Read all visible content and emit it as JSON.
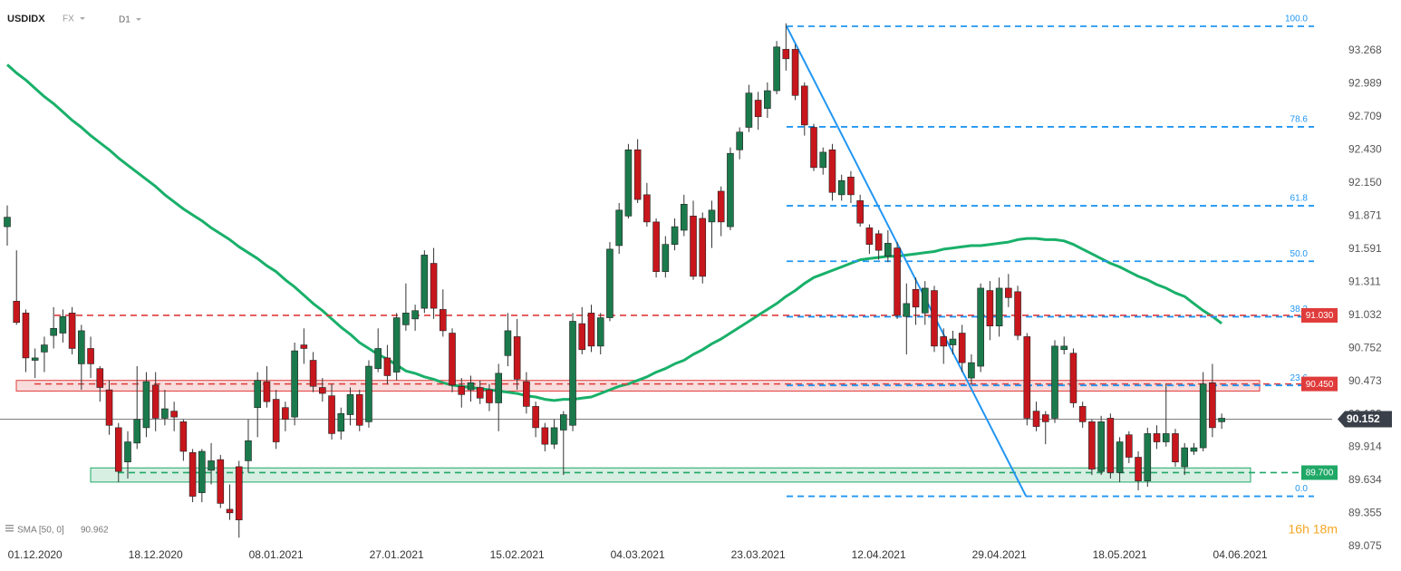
{
  "header": {
    "symbol": "USDIDX",
    "market": "FX",
    "interval": "D1"
  },
  "timer": "16h 18m",
  "chart_data": {
    "type": "candlestick",
    "up_color": "#1b7a4c",
    "down_color": "#c8161d",
    "grid": false,
    "ylim": [
      89.075,
      93.697
    ],
    "yticks": [
      {
        "value": 93.268,
        "label": "93.268"
      },
      {
        "value": 92.989,
        "label": "92.989"
      },
      {
        "value": 92.709,
        "label": "92.709"
      },
      {
        "value": 92.43,
        "label": "92.430"
      },
      {
        "value": 92.15,
        "label": "92.150"
      },
      {
        "value": 91.871,
        "label": "91.871"
      },
      {
        "value": 91.591,
        "label": "91.591"
      },
      {
        "value": 91.311,
        "label": "91.311"
      },
      {
        "value": 91.032,
        "label": "91.032"
      },
      {
        "value": 90.752,
        "label": "90.752"
      },
      {
        "value": 90.473,
        "label": "90.473"
      },
      {
        "value": 90.193,
        "label": "90.193"
      },
      {
        "value": 89.914,
        "label": "89.914"
      },
      {
        "value": 89.634,
        "label": "89.634"
      },
      {
        "value": 89.355,
        "label": "89.355"
      },
      {
        "value": 89.075,
        "label": "89.075"
      }
    ],
    "categories": [
      null,
      null,
      null,
      "01.12.2020",
      null,
      null,
      null,
      null,
      null,
      null,
      null,
      null,
      null,
      null,
      null,
      null,
      "18.12.2020",
      null,
      null,
      null,
      null,
      null,
      null,
      null,
      null,
      null,
      null,
      null,
      null,
      "08.01.2021",
      null,
      null,
      null,
      null,
      null,
      null,
      null,
      null,
      null,
      null,
      null,
      null,
      "27.01.2021",
      null,
      null,
      null,
      null,
      null,
      null,
      null,
      null,
      null,
      null,
      null,
      null,
      "15.02.2021",
      null,
      null,
      null,
      null,
      null,
      null,
      null,
      null,
      null,
      null,
      null,
      null,
      "04.03.2021",
      null,
      null,
      null,
      null,
      null,
      null,
      null,
      null,
      null,
      null,
      null,
      null,
      "23.03.2021",
      null,
      null,
      null,
      null,
      null,
      null,
      null,
      null,
      null,
      null,
      null,
      null,
      "12.04.2021",
      null,
      null,
      null,
      null,
      null,
      null,
      null,
      null,
      null,
      null,
      null,
      null,
      "29.04.2021",
      null,
      null,
      null,
      null,
      null,
      null,
      null,
      null,
      null,
      null,
      null,
      null,
      "18.05.2021",
      null,
      null,
      null,
      null,
      null,
      null,
      null,
      null,
      null,
      null,
      null,
      null,
      "04.06.2021"
    ],
    "candles": [
      [
        91.78,
        91.96,
        91.62,
        91.86
      ],
      [
        91.15,
        91.58,
        90.95,
        90.97
      ],
      [
        91.05,
        91.08,
        90.55,
        90.67
      ],
      [
        90.65,
        90.75,
        90.5,
        90.67
      ],
      [
        90.72,
        90.85,
        90.55,
        90.78
      ],
      [
        90.86,
        91.1,
        90.75,
        90.92
      ],
      [
        90.88,
        91.08,
        90.8,
        91.02
      ],
      [
        91.05,
        91.1,
        90.7,
        90.75
      ],
      [
        90.62,
        90.95,
        90.4,
        90.9
      ],
      [
        90.75,
        90.85,
        90.5,
        90.62
      ],
      [
        90.58,
        90.6,
        90.3,
        90.42
      ],
      [
        90.4,
        90.48,
        90.02,
        90.1
      ],
      [
        90.08,
        90.12,
        89.62,
        89.71
      ],
      [
        89.79,
        90.05,
        89.65,
        89.96
      ],
      [
        89.95,
        90.6,
        89.9,
        90.15
      ],
      [
        90.08,
        90.55,
        90.0,
        90.47
      ],
      [
        90.44,
        90.55,
        90.05,
        90.16
      ],
      [
        90.16,
        90.4,
        90.1,
        90.24
      ],
      [
        90.22,
        90.3,
        90.05,
        90.17
      ],
      [
        90.13,
        90.15,
        89.8,
        89.88
      ],
      [
        89.87,
        89.9,
        89.45,
        89.5
      ],
      [
        89.53,
        89.9,
        89.45,
        89.88
      ],
      [
        89.72,
        89.95,
        89.6,
        89.8
      ],
      [
        89.81,
        89.85,
        89.4,
        89.44
      ],
      [
        89.39,
        89.6,
        89.3,
        89.36
      ],
      [
        89.75,
        89.8,
        89.15,
        89.3
      ],
      [
        89.8,
        90.15,
        89.7,
        89.97
      ],
      [
        90.25,
        90.55,
        90.0,
        90.48
      ],
      [
        90.47,
        90.6,
        90.25,
        90.3
      ],
      [
        90.32,
        90.4,
        89.9,
        89.96
      ],
      [
        90.25,
        90.3,
        90.05,
        90.15
      ],
      [
        90.17,
        90.8,
        90.1,
        90.73
      ],
      [
        90.78,
        90.92,
        90.62,
        90.75
      ],
      [
        90.65,
        90.72,
        90.38,
        90.43
      ],
      [
        90.42,
        90.5,
        90.3,
        90.37
      ],
      [
        90.35,
        90.45,
        89.98,
        90.03
      ],
      [
        90.05,
        90.25,
        89.98,
        90.2
      ],
      [
        90.19,
        90.42,
        90.1,
        90.36
      ],
      [
        90.36,
        90.4,
        90.05,
        90.1
      ],
      [
        90.13,
        90.65,
        90.08,
        90.6
      ],
      [
        90.58,
        90.92,
        90.55,
        90.75
      ],
      [
        90.67,
        90.78,
        90.45,
        90.52
      ],
      [
        90.55,
        91.05,
        90.48,
        91.01
      ],
      [
        90.95,
        91.3,
        90.9,
        91.05
      ],
      [
        91.0,
        91.12,
        90.9,
        91.07
      ],
      [
        91.09,
        91.58,
        91.05,
        91.54
      ],
      [
        91.47,
        91.6,
        91.0,
        91.09
      ],
      [
        91.08,
        91.25,
        90.85,
        90.9
      ],
      [
        90.88,
        90.92,
        90.38,
        90.44
      ],
      [
        90.43,
        90.5,
        90.25,
        90.36
      ],
      [
        90.4,
        90.52,
        90.3,
        90.46
      ],
      [
        90.42,
        90.48,
        90.28,
        90.33
      ],
      [
        90.4,
        90.45,
        90.22,
        90.29
      ],
      [
        90.29,
        90.62,
        90.05,
        90.54
      ],
      [
        90.69,
        91.05,
        90.6,
        90.9
      ],
      [
        90.85,
        91.0,
        90.4,
        90.49
      ],
      [
        90.47,
        90.55,
        90.2,
        90.26
      ],
      [
        90.26,
        90.3,
        90.0,
        90.08
      ],
      [
        90.08,
        90.12,
        89.88,
        89.94
      ],
      [
        89.94,
        90.15,
        89.9,
        90.08
      ],
      [
        90.06,
        90.22,
        89.68,
        90.19
      ],
      [
        90.1,
        91.05,
        90.05,
        90.98
      ],
      [
        90.96,
        91.1,
        90.7,
        90.74
      ],
      [
        91.05,
        91.12,
        90.72,
        90.77
      ],
      [
        90.77,
        91.05,
        90.7,
        91.01
      ],
      [
        91.01,
        91.65,
        90.98,
        91.59
      ],
      [
        91.62,
        91.98,
        91.55,
        91.92
      ],
      [
        91.87,
        92.48,
        91.85,
        92.43
      ],
      [
        92.43,
        92.52,
        91.98,
        92.01
      ],
      [
        92.05,
        92.15,
        91.78,
        91.82
      ],
      [
        91.82,
        91.85,
        91.35,
        91.4
      ],
      [
        91.4,
        91.7,
        91.35,
        91.63
      ],
      [
        91.63,
        91.85,
        91.58,
        91.78
      ],
      [
        91.75,
        92.05,
        91.7,
        91.97
      ],
      [
        91.87,
        92.0,
        91.33,
        91.36
      ],
      [
        91.85,
        91.9,
        91.3,
        91.36
      ],
      [
        91.82,
        92.0,
        91.6,
        91.92
      ],
      [
        92.08,
        92.12,
        91.7,
        91.82
      ],
      [
        91.78,
        92.45,
        91.75,
        92.4
      ],
      [
        92.43,
        92.62,
        92.35,
        92.58
      ],
      [
        92.62,
        92.98,
        92.58,
        92.91
      ],
      [
        92.85,
        92.92,
        92.6,
        92.71
      ],
      [
        92.78,
        93.0,
        92.7,
        92.93
      ],
      [
        92.93,
        93.35,
        92.9,
        93.3
      ],
      [
        93.28,
        93.5,
        93.1,
        93.2
      ],
      [
        93.28,
        93.32,
        92.85,
        92.89
      ],
      [
        92.97,
        93.0,
        92.55,
        92.64
      ],
      [
        92.62,
        92.65,
        92.25,
        92.28
      ],
      [
        92.28,
        92.45,
        92.22,
        92.41
      ],
      [
        92.43,
        92.48,
        92.0,
        92.07
      ],
      [
        92.05,
        92.22,
        92.0,
        92.17
      ],
      [
        92.2,
        92.25,
        91.98,
        92.05
      ],
      [
        92.0,
        92.05,
        91.78,
        91.81
      ],
      [
        91.77,
        91.8,
        91.55,
        91.63
      ],
      [
        91.72,
        91.75,
        91.5,
        91.58
      ],
      [
        91.53,
        91.75,
        91.48,
        91.64
      ],
      [
        91.6,
        91.65,
        91.0,
        91.03
      ],
      [
        91.02,
        91.3,
        90.7,
        91.13
      ],
      [
        91.25,
        91.35,
        90.95,
        91.1
      ],
      [
        91.05,
        91.32,
        90.95,
        91.26
      ],
      [
        91.24,
        91.28,
        90.72,
        90.77
      ],
      [
        90.85,
        90.92,
        90.62,
        90.77
      ],
      [
        90.78,
        90.9,
        90.7,
        90.83
      ],
      [
        90.88,
        90.95,
        90.55,
        90.63
      ],
      [
        90.5,
        90.7,
        90.45,
        90.63
      ],
      [
        90.6,
        91.3,
        90.55,
        91.26
      ],
      [
        91.24,
        91.32,
        90.82,
        90.94
      ],
      [
        90.94,
        91.35,
        90.85,
        91.26
      ],
      [
        91.26,
        91.38,
        91.1,
        91.18
      ],
      [
        91.23,
        91.28,
        90.82,
        90.86
      ],
      [
        90.85,
        90.88,
        90.1,
        90.16
      ],
      [
        90.22,
        90.3,
        90.05,
        90.09
      ],
      [
        90.19,
        90.22,
        89.94,
        90.13
      ],
      [
        90.16,
        90.82,
        90.12,
        90.77
      ],
      [
        90.74,
        90.85,
        90.7,
        90.77
      ],
      [
        90.71,
        90.75,
        90.25,
        90.29
      ],
      [
        90.26,
        90.3,
        90.08,
        90.13
      ],
      [
        90.13,
        90.15,
        89.68,
        89.73
      ],
      [
        89.71,
        90.18,
        89.68,
        90.13
      ],
      [
        90.16,
        90.2,
        89.65,
        89.7
      ],
      [
        89.7,
        90.0,
        89.62,
        89.96
      ],
      [
        90.02,
        90.05,
        89.78,
        89.83
      ],
      [
        89.83,
        89.88,
        89.55,
        89.63
      ],
      [
        89.63,
        90.08,
        89.58,
        90.03
      ],
      [
        90.03,
        90.1,
        89.9,
        89.96
      ],
      [
        89.96,
        90.45,
        89.92,
        90.03
      ],
      [
        90.03,
        90.07,
        89.75,
        89.79
      ],
      [
        89.75,
        89.95,
        89.68,
        89.91
      ],
      [
        89.88,
        89.95,
        89.85,
        89.91
      ],
      [
        89.91,
        90.55,
        89.88,
        90.45
      ],
      [
        90.46,
        90.62,
        90.0,
        90.08
      ],
      [
        90.13,
        90.2,
        90.07,
        90.16
      ],
      null,
      null
    ],
    "sma": {
      "name": "SMA [50, 0]",
      "color": "#19b06a",
      "values": [
        93.15,
        93.08,
        93.02,
        92.95,
        92.88,
        92.82,
        92.75,
        92.68,
        92.62,
        92.55,
        92.49,
        92.43,
        92.36,
        92.3,
        92.24,
        92.18,
        92.12,
        92.05,
        91.99,
        91.93,
        91.88,
        91.83,
        91.77,
        91.72,
        91.67,
        91.61,
        91.56,
        91.51,
        91.45,
        91.4,
        91.33,
        91.27,
        91.2,
        91.13,
        91.07,
        91.0,
        90.93,
        90.87,
        90.8,
        90.75,
        90.7,
        90.66,
        90.61,
        90.56,
        90.54,
        90.51,
        90.49,
        90.46,
        90.44,
        90.43,
        90.42,
        90.41,
        90.4,
        90.39,
        90.38,
        90.37,
        90.35,
        90.34,
        90.32,
        90.31,
        90.32,
        90.32,
        90.33,
        90.34,
        90.37,
        90.4,
        90.43,
        90.45,
        90.48,
        90.51,
        90.55,
        90.58,
        90.62,
        90.65,
        90.7,
        90.74,
        90.79,
        90.83,
        90.88,
        90.93,
        90.98,
        91.03,
        91.08,
        91.13,
        91.19,
        91.24,
        91.3,
        91.35,
        91.38,
        91.41,
        91.44,
        91.47,
        91.5,
        91.51,
        91.52,
        91.53,
        91.53,
        91.54,
        91.55,
        91.56,
        91.57,
        91.59,
        91.6,
        91.61,
        91.62,
        91.62,
        91.63,
        91.64,
        91.65,
        91.67,
        91.68,
        91.68,
        91.67,
        91.67,
        91.66,
        91.63,
        91.59,
        91.55,
        91.51,
        91.47,
        91.44,
        91.4,
        91.36,
        91.33,
        91.29,
        91.26,
        91.22,
        91.19,
        91.13,
        91.07,
        91.02,
        90.962,
        null,
        null
      ]
    },
    "levels": [
      {
        "value": 91.03,
        "label": "91.030",
        "color": "#e03b3b"
      },
      {
        "value": 90.45,
        "label": "90.450",
        "color": "#e03b3b",
        "box": [
          90.48,
          90.39
        ]
      },
      {
        "value": 89.7,
        "label": "89.700",
        "color": "#1fa866",
        "box": [
          89.74,
          89.62
        ]
      }
    ],
    "last_price": 90.152,
    "fibonacci": {
      "high": 93.475,
      "low": 89.5,
      "color": "#2196f3",
      "levels": [
        {
          "value": 100,
          "label": "100.0"
        },
        {
          "value": 78.6,
          "label": "78.6"
        },
        {
          "value": 61.8,
          "label": "61.8"
        },
        {
          "value": 50,
          "label": "50.0"
        },
        {
          "value": 38.2,
          "label": "38.2"
        },
        {
          "value": 23.6,
          "label": "23.6"
        },
        {
          "value": 0,
          "label": "0.0"
        }
      ]
    },
    "trendline": {
      "x": [
        84.06,
        109.9
      ],
      "values": [
        93.475,
        89.5
      ],
      "color": "#2196f3"
    }
  }
}
